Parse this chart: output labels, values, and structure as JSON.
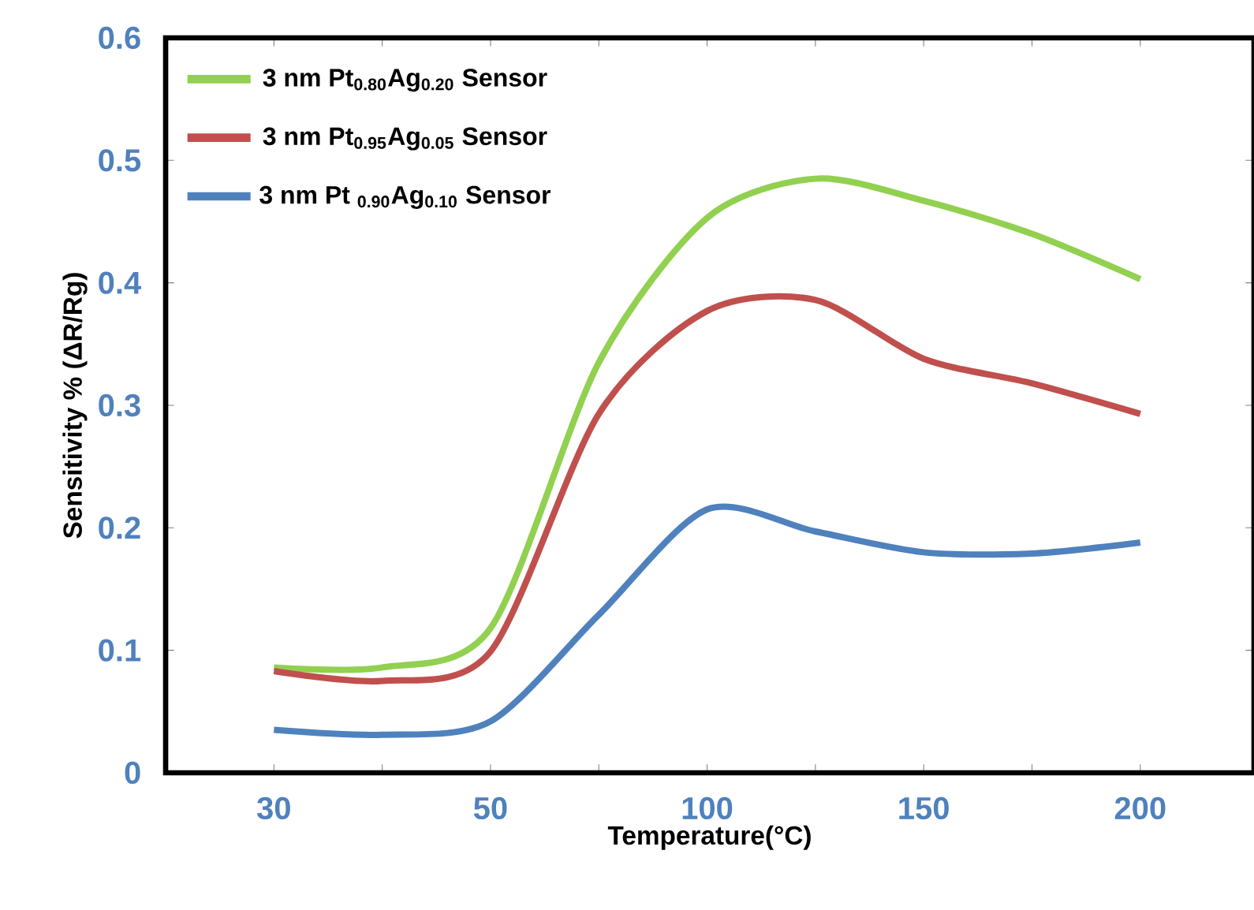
{
  "chart_data": {
    "type": "line",
    "xlabel": "Temperature(°C)",
    "ylabel": "Sensitivity % (ΔR/Rg)",
    "categories": [
      "30",
      null,
      "50",
      null,
      "100",
      null,
      "150",
      null,
      "200"
    ],
    "ylim": [
      0,
      0.6
    ],
    "yticks": [
      0,
      0.1,
      0.2,
      0.3,
      0.4,
      0.5,
      0.6
    ],
    "legend": "top left",
    "grid": false,
    "marker": "none",
    "line_style": "solid",
    "series": [
      {
        "name": "3 nm Pt$_{0.80}$Ag$_{0.20}$ Sensor",
        "color": "#92d050",
        "values": [
          0.086,
          0.086,
          0.118,
          0.335,
          0.453,
          0.485,
          0.467,
          0.44,
          0.403
        ]
      },
      {
        "name": "3 nm Pt$_{0.95}$Ag$_{0.05}$ Sensor",
        "color": "#c0504d",
        "values": [
          0.083,
          0.075,
          0.099,
          0.293,
          0.377,
          0.386,
          0.338,
          0.318,
          0.293
        ]
      },
      {
        "name": "3 nm Pt $_{0.90}$Ag$_{0.10}$ Sensor",
        "color": "#4f81bd",
        "values": [
          0.035,
          0.031,
          0.042,
          0.129,
          0.215,
          0.197,
          0.18,
          0.179,
          0.188
        ]
      }
    ]
  }
}
